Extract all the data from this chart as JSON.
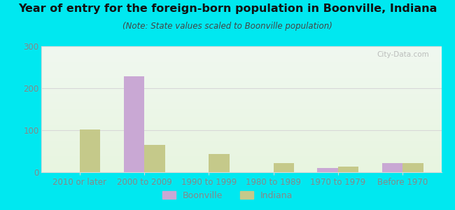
{
  "title": "Year of entry for the foreign-born population in Boonville, Indiana",
  "subtitle": "(Note: State values scaled to Boonville population)",
  "categories": [
    "2010 or later",
    "2000 to 2009",
    "1990 to 1999",
    "1980 to 1989",
    "1970 to 1979",
    "Before 1970"
  ],
  "boonville_values": [
    0,
    228,
    0,
    0,
    10,
    22
  ],
  "indiana_values": [
    102,
    65,
    43,
    22,
    13,
    22
  ],
  "boonville_color": "#c9a8d4",
  "indiana_color": "#c5c98a",
  "background_outer": "#00e8f0",
  "plot_bg_top": "#f0f8f0",
  "plot_bg_bottom": "#e8f5e0",
  "ylim": [
    0,
    300
  ],
  "yticks": [
    0,
    100,
    200,
    300
  ],
  "bar_width": 0.32,
  "figsize": [
    6.5,
    3.0
  ],
  "dpi": 100,
  "title_fontsize": 11.5,
  "subtitle_fontsize": 8.5,
  "tick_fontsize": 8.5,
  "watermark": "City-Data.com",
  "grid_color": "#d8d8d8",
  "tick_color": "#888888",
  "title_color": "#111111",
  "subtitle_color": "#444444"
}
